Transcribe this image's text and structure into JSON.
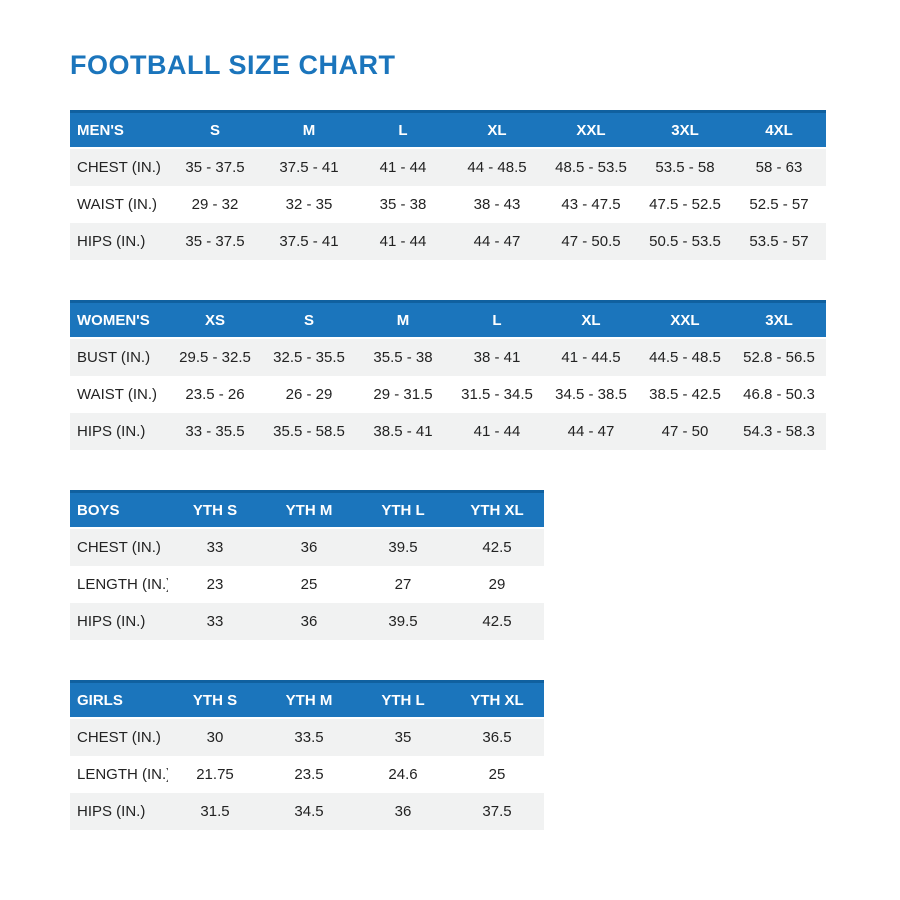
{
  "page": {
    "title": "FOOTBALL SIZE CHART"
  },
  "colors": {
    "accent_blue": "#1b75bc",
    "header_top_edge": "#10609f",
    "alt_row_bg": "#f1f2f2",
    "body_text": "#232323",
    "header_text": "#ffffff"
  },
  "tables": [
    {
      "id": "mens",
      "header": [
        "MEN'S",
        "S",
        "M",
        "L",
        "XL",
        "XXL",
        "3XL",
        "4XL"
      ],
      "rows": [
        [
          "CHEST (IN.)",
          "35 - 37.5",
          "37.5 - 41",
          "41 - 44",
          "44 - 48.5",
          "48.5 - 53.5",
          "53.5 - 58",
          "58 - 63"
        ],
        [
          "WAIST (IN.)",
          "29 - 32",
          "32 - 35",
          "35 - 38",
          "38 - 43",
          "43 - 47.5",
          "47.5 - 52.5",
          "52.5 - 57"
        ],
        [
          "HIPS (IN.)",
          "35 - 37.5",
          "37.5 - 41",
          "41 - 44",
          "44 - 47",
          "47 - 50.5",
          "50.5 - 53.5",
          "53.5 - 57"
        ]
      ]
    },
    {
      "id": "womens",
      "header": [
        "WOMEN'S",
        "XS",
        "S",
        "M",
        "L",
        "XL",
        "XXL",
        "3XL"
      ],
      "rows": [
        [
          "BUST (IN.)",
          "29.5 - 32.5",
          "32.5 - 35.5",
          "35.5 - 38",
          "38 - 41",
          "41 - 44.5",
          "44.5 - 48.5",
          "52.8 - 56.5"
        ],
        [
          "WAIST (IN.)",
          "23.5 - 26",
          "26 - 29",
          "29 - 31.5",
          "31.5 - 34.5",
          "34.5 - 38.5",
          "38.5 - 42.5",
          "46.8 - 50.3"
        ],
        [
          "HIPS (IN.)",
          "33 - 35.5",
          "35.5 - 58.5",
          "38.5 - 41",
          "41 - 44",
          "44 - 47",
          "47 - 50",
          "54.3 - 58.3"
        ]
      ]
    },
    {
      "id": "boys",
      "header": [
        "BOYS",
        "YTH S",
        "YTH M",
        "YTH L",
        "YTH XL"
      ],
      "rows": [
        [
          "CHEST (IN.)",
          "33",
          "36",
          "39.5",
          "42.5"
        ],
        [
          "LENGTH (IN.)",
          "23",
          "25",
          "27",
          "29"
        ],
        [
          "HIPS (IN.)",
          "33",
          "36",
          "39.5",
          "42.5"
        ]
      ]
    },
    {
      "id": "girls",
      "header": [
        "GIRLS",
        "YTH S",
        "YTH M",
        "YTH L",
        "YTH XL"
      ],
      "rows": [
        [
          "CHEST (IN.)",
          "30",
          "33.5",
          "35",
          "36.5"
        ],
        [
          "LENGTH (IN.)",
          "21.75",
          "23.5",
          "24.6",
          "25"
        ],
        [
          "HIPS (IN.)",
          "31.5",
          "34.5",
          "36",
          "37.5"
        ]
      ]
    }
  ]
}
